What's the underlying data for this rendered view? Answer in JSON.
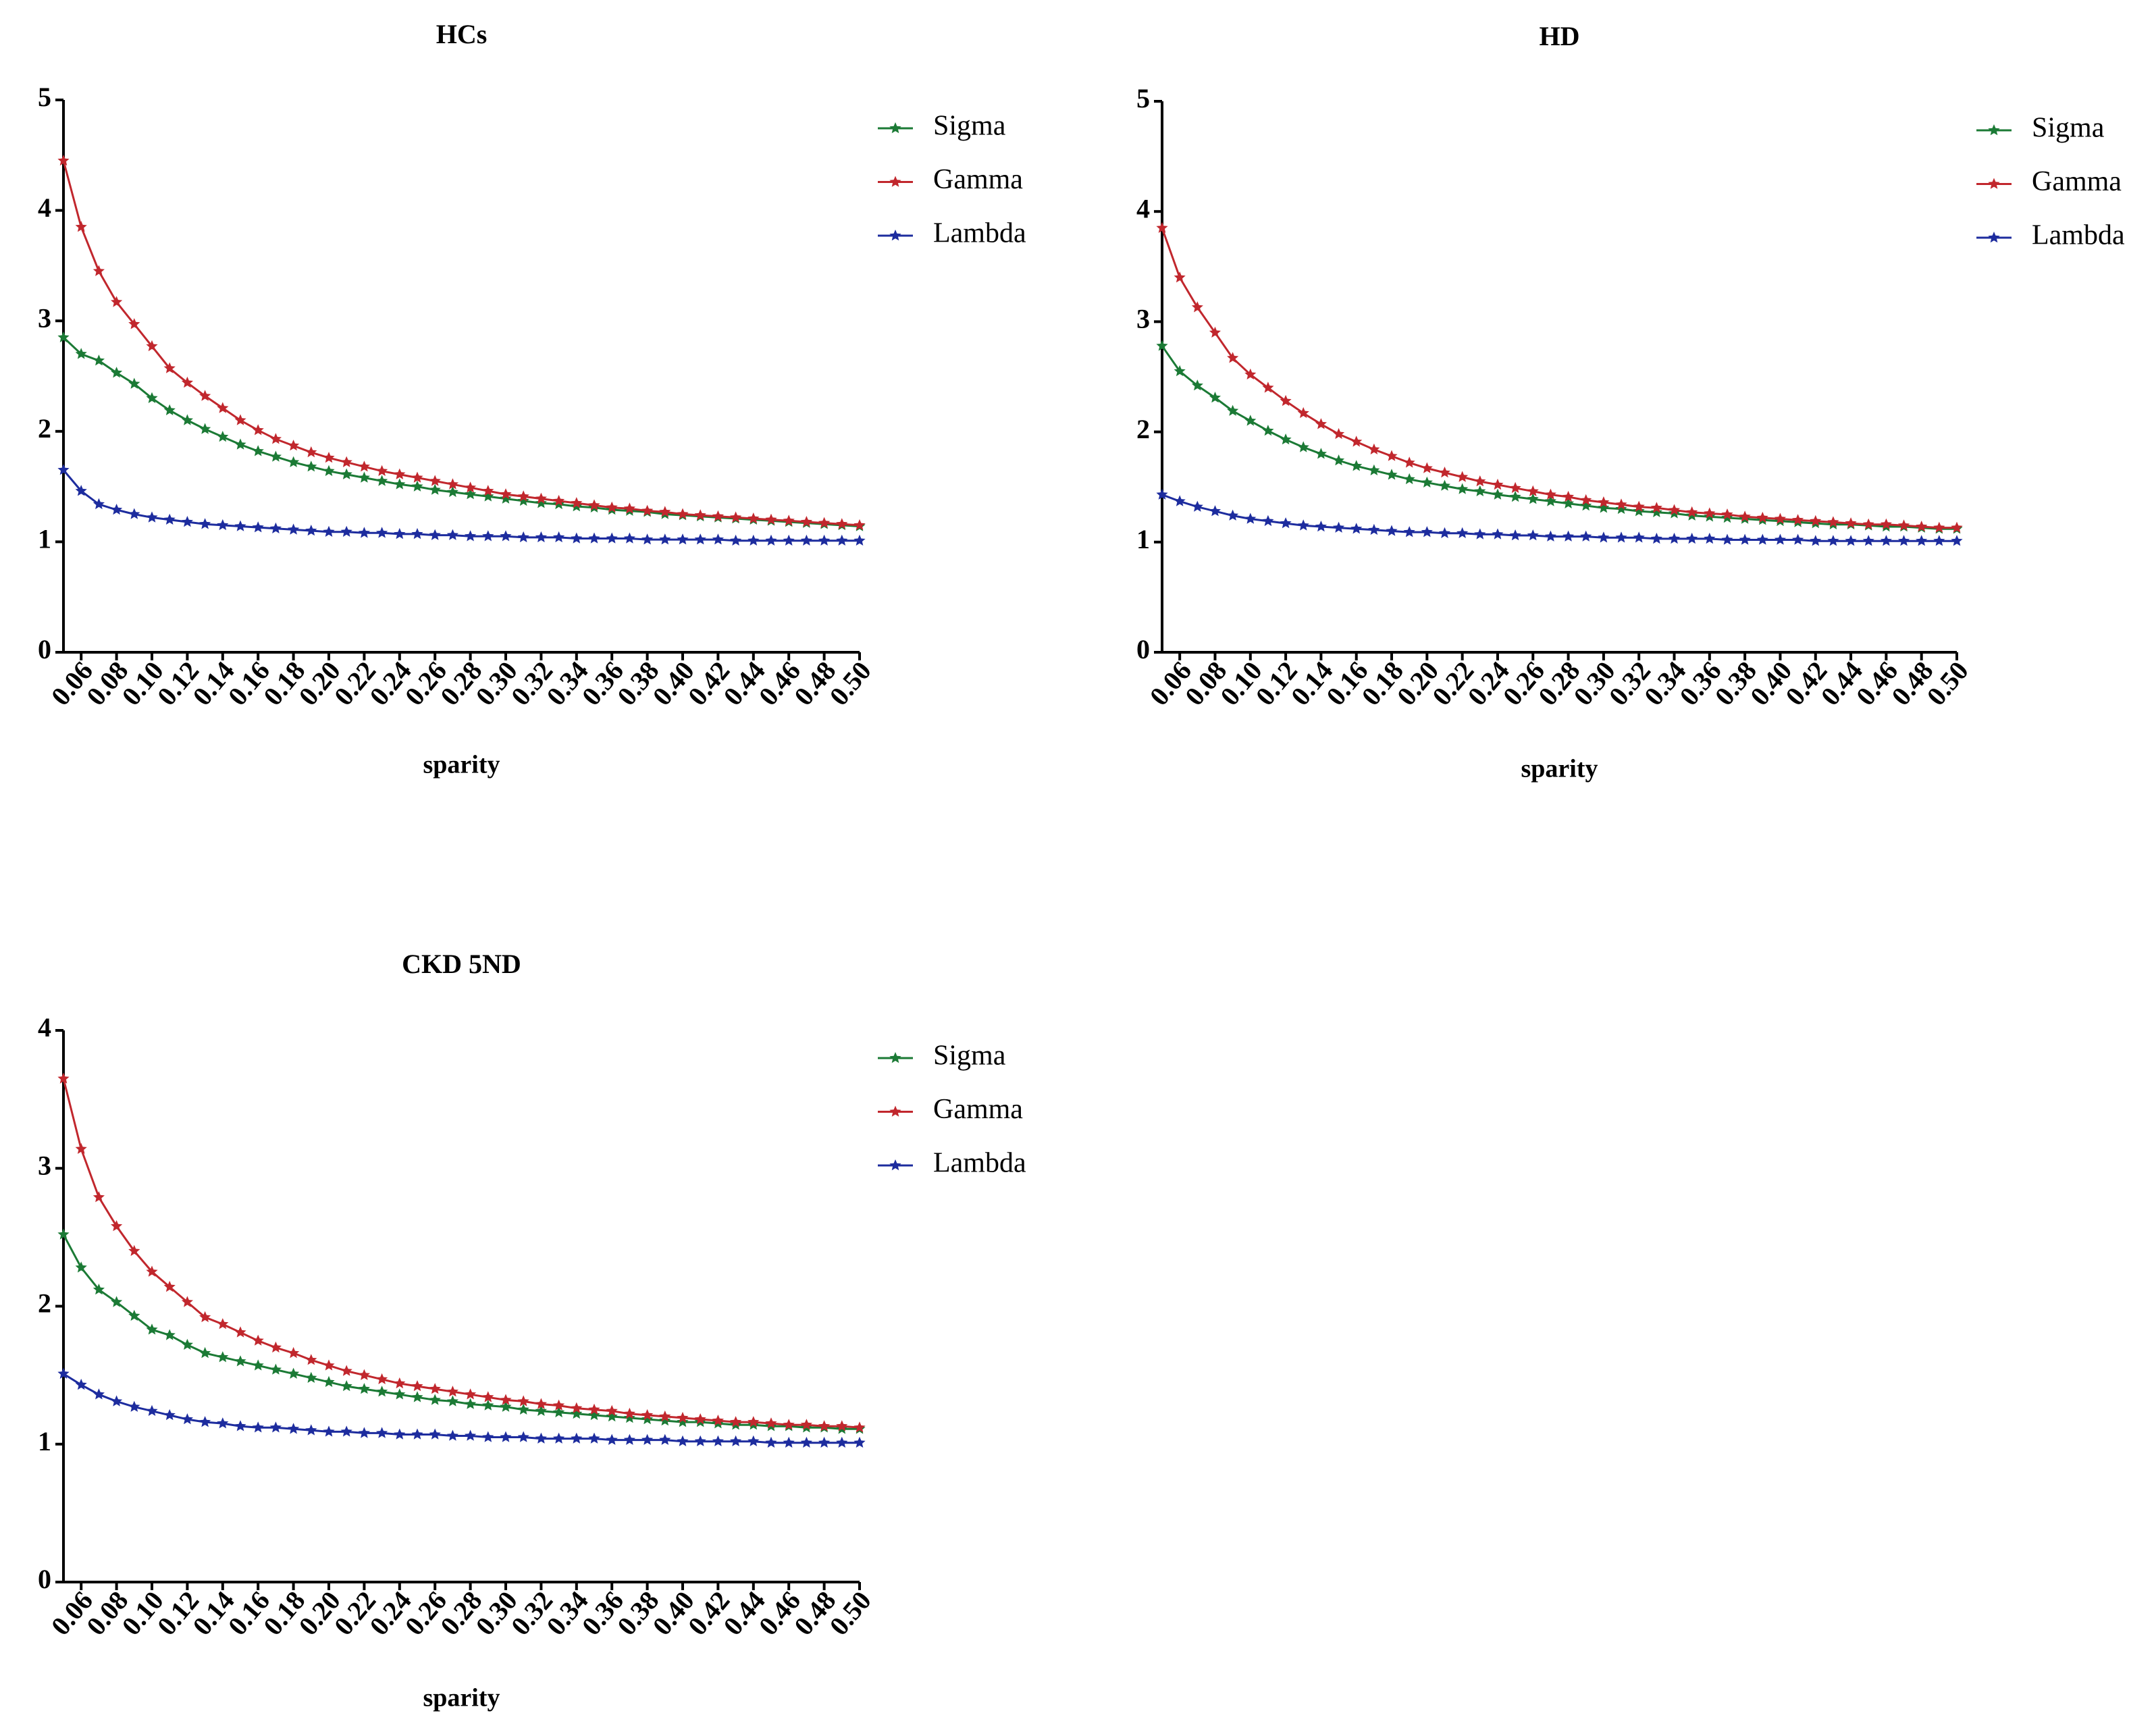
{
  "chart_data": [
    {
      "type": "line",
      "title": "HCs",
      "x_label": "sparity",
      "legend": "right",
      "x": [
        0.05,
        0.06,
        0.07,
        0.08,
        0.09,
        0.1,
        0.11,
        0.12,
        0.13,
        0.14,
        0.15,
        0.16,
        0.17,
        0.18,
        0.19,
        0.2,
        0.21,
        0.22,
        0.23,
        0.24,
        0.25,
        0.26,
        0.27,
        0.28,
        0.29,
        0.3,
        0.31,
        0.32,
        0.33,
        0.34,
        0.35,
        0.36,
        0.37,
        0.38,
        0.39,
        0.4,
        0.41,
        0.42,
        0.43,
        0.44,
        0.45,
        0.46,
        0.47,
        0.48,
        0.49,
        0.5
      ],
      "xlim": [
        0.05,
        0.5
      ],
      "xticks": [
        0.06,
        0.08,
        {
          "value": 0.1,
          "label": "0.10"
        },
        0.12,
        0.14,
        0.16,
        0.18,
        {
          "value": 0.2,
          "label": "0.20"
        },
        0.22,
        0.24,
        0.26,
        0.28,
        {
          "value": 0.3,
          "label": "0.30"
        },
        0.32,
        0.34,
        0.36,
        0.38,
        {
          "value": 0.4,
          "label": "0.40"
        },
        0.42,
        0.44,
        0.46,
        0.48,
        {
          "value": 0.5,
          "label": "0.50"
        }
      ],
      "ylim": [
        0,
        5
      ],
      "yticks": [
        0,
        1,
        2,
        3,
        4,
        5
      ],
      "series": [
        {
          "name": "Sigma",
          "color": "#1b7a35",
          "values": [
            2.85,
            2.7,
            2.64,
            2.53,
            2.43,
            2.3,
            2.19,
            2.1,
            2.02,
            1.95,
            1.88,
            1.82,
            1.77,
            1.72,
            1.68,
            1.64,
            1.61,
            1.58,
            1.55,
            1.52,
            1.5,
            1.47,
            1.45,
            1.43,
            1.41,
            1.39,
            1.37,
            1.35,
            1.34,
            1.32,
            1.31,
            1.29,
            1.28,
            1.27,
            1.25,
            1.24,
            1.23,
            1.22,
            1.21,
            1.2,
            1.19,
            1.18,
            1.17,
            1.16,
            1.15,
            1.14
          ]
        },
        {
          "name": "Gamma",
          "color": "#c1272d",
          "values": [
            4.45,
            3.85,
            3.45,
            3.17,
            2.97,
            2.77,
            2.57,
            2.44,
            2.32,
            2.21,
            2.1,
            2.01,
            1.93,
            1.87,
            1.81,
            1.76,
            1.72,
            1.68,
            1.64,
            1.61,
            1.58,
            1.55,
            1.52,
            1.49,
            1.46,
            1.43,
            1.41,
            1.39,
            1.37,
            1.35,
            1.33,
            1.31,
            1.3,
            1.28,
            1.27,
            1.25,
            1.24,
            1.23,
            1.22,
            1.21,
            1.2,
            1.19,
            1.18,
            1.17,
            1.16,
            1.15
          ]
        },
        {
          "name": "Lambda",
          "color": "#1d2c9e",
          "values": [
            1.65,
            1.46,
            1.34,
            1.29,
            1.25,
            1.22,
            1.2,
            1.18,
            1.16,
            1.15,
            1.14,
            1.13,
            1.12,
            1.11,
            1.1,
            1.09,
            1.09,
            1.08,
            1.08,
            1.07,
            1.07,
            1.06,
            1.06,
            1.05,
            1.05,
            1.05,
            1.04,
            1.04,
            1.04,
            1.03,
            1.03,
            1.03,
            1.03,
            1.02,
            1.02,
            1.02,
            1.02,
            1.02,
            1.01,
            1.01,
            1.01,
            1.01,
            1.01,
            1.01,
            1.01,
            1.01
          ]
        }
      ]
    },
    {
      "type": "line",
      "title": "HD",
      "x_label": "sparity",
      "legend": "right",
      "x": [
        0.05,
        0.06,
        0.07,
        0.08,
        0.09,
        0.1,
        0.11,
        0.12,
        0.13,
        0.14,
        0.15,
        0.16,
        0.17,
        0.18,
        0.19,
        0.2,
        0.21,
        0.22,
        0.23,
        0.24,
        0.25,
        0.26,
        0.27,
        0.28,
        0.29,
        0.3,
        0.31,
        0.32,
        0.33,
        0.34,
        0.35,
        0.36,
        0.37,
        0.38,
        0.39,
        0.4,
        0.41,
        0.42,
        0.43,
        0.44,
        0.45,
        0.46,
        0.47,
        0.48,
        0.49,
        0.5
      ],
      "xlim": [
        0.05,
        0.5
      ],
      "xticks": [
        0.06,
        0.08,
        {
          "value": 0.1,
          "label": "0.10"
        },
        0.12,
        0.14,
        0.16,
        0.18,
        {
          "value": 0.2,
          "label": "0.20"
        },
        0.22,
        0.24,
        0.26,
        0.28,
        {
          "value": 0.3,
          "label": "0.30"
        },
        0.32,
        0.34,
        0.36,
        0.38,
        {
          "value": 0.4,
          "label": "0.40"
        },
        0.42,
        0.44,
        0.46,
        0.48,
        {
          "value": 0.5,
          "label": "0.50"
        }
      ],
      "ylim": [
        0,
        5
      ],
      "yticks": [
        0,
        1,
        2,
        3,
        4,
        5
      ],
      "series": [
        {
          "name": "Sigma",
          "color": "#1b7a35",
          "values": [
            2.78,
            2.55,
            2.42,
            2.31,
            2.19,
            2.1,
            2.01,
            1.93,
            1.86,
            1.8,
            1.74,
            1.69,
            1.65,
            1.61,
            1.57,
            1.54,
            1.51,
            1.48,
            1.46,
            1.43,
            1.41,
            1.39,
            1.37,
            1.35,
            1.33,
            1.31,
            1.3,
            1.28,
            1.27,
            1.26,
            1.24,
            1.23,
            1.22,
            1.21,
            1.2,
            1.19,
            1.18,
            1.17,
            1.16,
            1.16,
            1.15,
            1.14,
            1.14,
            1.13,
            1.12,
            1.12
          ]
        },
        {
          "name": "Gamma",
          "color": "#c1272d",
          "values": [
            3.85,
            3.4,
            3.13,
            2.9,
            2.67,
            2.52,
            2.4,
            2.28,
            2.17,
            2.07,
            1.98,
            1.91,
            1.84,
            1.78,
            1.72,
            1.67,
            1.63,
            1.59,
            1.55,
            1.52,
            1.49,
            1.46,
            1.43,
            1.41,
            1.38,
            1.36,
            1.34,
            1.32,
            1.31,
            1.29,
            1.27,
            1.26,
            1.25,
            1.23,
            1.22,
            1.21,
            1.2,
            1.19,
            1.18,
            1.17,
            1.16,
            1.16,
            1.15,
            1.14,
            1.13,
            1.13
          ]
        },
        {
          "name": "Lambda",
          "color": "#1d2c9e",
          "values": [
            1.43,
            1.37,
            1.32,
            1.28,
            1.24,
            1.21,
            1.19,
            1.17,
            1.15,
            1.14,
            1.13,
            1.12,
            1.11,
            1.1,
            1.09,
            1.09,
            1.08,
            1.08,
            1.07,
            1.07,
            1.06,
            1.06,
            1.05,
            1.05,
            1.05,
            1.04,
            1.04,
            1.04,
            1.03,
            1.03,
            1.03,
            1.03,
            1.02,
            1.02,
            1.02,
            1.02,
            1.02,
            1.01,
            1.01,
            1.01,
            1.01,
            1.01,
            1.01,
            1.01,
            1.01,
            1.01
          ]
        }
      ]
    },
    {
      "type": "line",
      "title": "CKD 5ND",
      "x_label": "sparity",
      "legend": "right",
      "x": [
        0.05,
        0.06,
        0.07,
        0.08,
        0.09,
        0.1,
        0.11,
        0.12,
        0.13,
        0.14,
        0.15,
        0.16,
        0.17,
        0.18,
        0.19,
        0.2,
        0.21,
        0.22,
        0.23,
        0.24,
        0.25,
        0.26,
        0.27,
        0.28,
        0.29,
        0.3,
        0.31,
        0.32,
        0.33,
        0.34,
        0.35,
        0.36,
        0.37,
        0.38,
        0.39,
        0.4,
        0.41,
        0.42,
        0.43,
        0.44,
        0.45,
        0.46,
        0.47,
        0.48,
        0.49,
        0.5
      ],
      "xlim": [
        0.05,
        0.5
      ],
      "xticks": [
        0.06,
        0.08,
        {
          "value": 0.1,
          "label": "0.10"
        },
        0.12,
        0.14,
        0.16,
        0.18,
        {
          "value": 0.2,
          "label": "0.20"
        },
        0.22,
        0.24,
        0.26,
        0.28,
        {
          "value": 0.3,
          "label": "0.30"
        },
        0.32,
        0.34,
        0.36,
        0.38,
        {
          "value": 0.4,
          "label": "0.40"
        },
        0.42,
        0.44,
        0.46,
        0.48,
        {
          "value": 0.5,
          "label": "0.50"
        }
      ],
      "ylim": [
        0,
        4
      ],
      "yticks": [
        0,
        1,
        2,
        3,
        4
      ],
      "series": [
        {
          "name": "Sigma",
          "color": "#1b7a35",
          "values": [
            2.52,
            2.28,
            2.12,
            2.03,
            1.93,
            1.83,
            1.79,
            1.72,
            1.66,
            1.63,
            1.6,
            1.57,
            1.54,
            1.51,
            1.48,
            1.45,
            1.42,
            1.4,
            1.38,
            1.36,
            1.34,
            1.32,
            1.31,
            1.29,
            1.28,
            1.27,
            1.25,
            1.24,
            1.23,
            1.22,
            1.21,
            1.2,
            1.19,
            1.18,
            1.17,
            1.16,
            1.16,
            1.15,
            1.14,
            1.14,
            1.13,
            1.13,
            1.12,
            1.12,
            1.11,
            1.11
          ]
        },
        {
          "name": "Gamma",
          "color": "#c1272d",
          "values": [
            3.65,
            3.14,
            2.79,
            2.58,
            2.4,
            2.25,
            2.14,
            2.03,
            1.92,
            1.87,
            1.81,
            1.75,
            1.7,
            1.66,
            1.61,
            1.57,
            1.53,
            1.5,
            1.47,
            1.44,
            1.42,
            1.4,
            1.38,
            1.36,
            1.34,
            1.32,
            1.31,
            1.29,
            1.28,
            1.26,
            1.25,
            1.24,
            1.22,
            1.21,
            1.2,
            1.19,
            1.18,
            1.17,
            1.16,
            1.16,
            1.15,
            1.14,
            1.14,
            1.13,
            1.13,
            1.12
          ]
        },
        {
          "name": "Lambda",
          "color": "#1d2c9e",
          "values": [
            1.51,
            1.43,
            1.36,
            1.31,
            1.27,
            1.24,
            1.21,
            1.18,
            1.16,
            1.15,
            1.13,
            1.12,
            1.12,
            1.11,
            1.1,
            1.09,
            1.09,
            1.08,
            1.08,
            1.07,
            1.07,
            1.07,
            1.06,
            1.06,
            1.05,
            1.05,
            1.05,
            1.04,
            1.04,
            1.04,
            1.04,
            1.03,
            1.03,
            1.03,
            1.03,
            1.02,
            1.02,
            1.02,
            1.02,
            1.02,
            1.01,
            1.01,
            1.01,
            1.01,
            1.01,
            1.01
          ]
        }
      ]
    }
  ]
}
